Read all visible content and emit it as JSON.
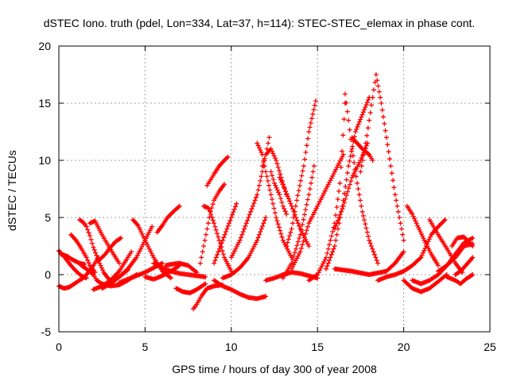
{
  "chart_data": {
    "type": "scatter",
    "title": "dSTEC Iono. truth (pdel, Lon=334, Lat=37, h=114): STEC-STEC_elemax in phase cont.",
    "xlabel": "GPS time / hours of day 300 of year 2008",
    "ylabel": "dSTEC  / TECUs",
    "xlim": [
      0,
      25
    ],
    "ylim": [
      -5,
      20
    ],
    "xticks": [
      0,
      5,
      10,
      15,
      20,
      25
    ],
    "yticks": [
      -5,
      0,
      5,
      10,
      15,
      20
    ],
    "xtick_labels": [
      "0",
      "5",
      "10",
      "15",
      "20",
      "25"
    ],
    "ytick_labels": [
      "-5",
      "0",
      "5",
      "10",
      "15",
      "20"
    ],
    "grid": true,
    "marker": "plus",
    "color": "#ff0000",
    "series": [
      {
        "x": [
          0.0,
          0.3,
          0.6,
          1.0,
          1.5,
          2.0,
          2.3
        ],
        "y": [
          -1.0,
          -1.2,
          -1.1,
          -0.7,
          -0.2,
          0.8,
          1.5
        ]
      },
      {
        "x": [
          0.0,
          0.3,
          0.7,
          1.0,
          1.3,
          1.6
        ],
        "y": [
          2.1,
          1.6,
          0.8,
          0.3,
          -0.1,
          -0.3
        ]
      },
      {
        "x": [
          0.1,
          0.5,
          0.8,
          1.2,
          1.5
        ],
        "y": [
          1.8,
          1.6,
          1.3,
          1.0,
          0.9
        ]
      },
      {
        "x": [
          0.7,
          1.0,
          1.3,
          1.6,
          1.8,
          2.1
        ],
        "y": [
          3.5,
          3.0,
          2.3,
          1.5,
          0.8,
          0.2
        ]
      },
      {
        "x": [
          1.2,
          1.4,
          1.6,
          1.8,
          2.0,
          2.3,
          2.6,
          3.0
        ],
        "y": [
          4.8,
          4.6,
          4.2,
          3.4,
          2.4,
          1.2,
          0.2,
          -0.6
        ]
      },
      {
        "x": [
          1.3,
          1.6,
          2.0,
          2.2,
          2.5,
          3.0,
          3.5,
          4.0,
          4.5
        ],
        "y": [
          0.8,
          0.5,
          0.0,
          -0.5,
          -0.8,
          -1.0,
          -0.9,
          -0.5,
          0.0
        ]
      },
      {
        "x": [
          2.0,
          2.5,
          3.0,
          3.5,
          4.0,
          4.2
        ],
        "y": [
          -1.3,
          -1.0,
          -0.5,
          0.3,
          1.5,
          2.0
        ]
      },
      {
        "x": [
          1.8,
          2.1,
          2.5,
          3.0,
          3.5
        ],
        "y": [
          4.5,
          4.7,
          3.5,
          2.2,
          1.0
        ]
      },
      {
        "x": [
          2.3,
          2.7,
          3.0,
          3.3,
          3.6
        ],
        "y": [
          1.2,
          1.8,
          2.4,
          2.9,
          3.2
        ]
      },
      {
        "x": [
          2.5,
          3.0,
          3.5,
          4.0
        ],
        "y": [
          -1.2,
          -0.8,
          -0.2,
          0.4
        ]
      },
      {
        "x": [
          3.0,
          3.5,
          4.0,
          4.5,
          5.0,
          5.4
        ],
        "y": [
          -0.5,
          -0.2,
          0.5,
          1.5,
          3.0,
          4.2
        ]
      },
      {
        "x": [
          4.3,
          4.6,
          5.0,
          5.5,
          6.0,
          6.5
        ],
        "y": [
          4.8,
          4.3,
          3.0,
          1.5,
          0.3,
          -0.3
        ]
      },
      {
        "x": [
          3.5,
          4.0,
          4.5,
          5.0,
          5.5,
          6.0
        ],
        "y": [
          -0.7,
          -0.4,
          -0.1,
          0.2,
          0.6,
          1.0
        ]
      },
      {
        "x": [
          5.0,
          5.5,
          6.0,
          6.5,
          7.0
        ],
        "y": [
          -0.2,
          -0.4,
          -0.1,
          0.3,
          0.8
        ]
      },
      {
        "x": [
          5.7,
          6.0,
          6.3,
          6.7,
          7.0
        ],
        "y": [
          3.7,
          4.3,
          5.0,
          5.6,
          6.0
        ]
      },
      {
        "x": [
          5.5,
          6.0,
          6.5,
          7.0,
          7.5,
          8.0,
          8.5
        ],
        "y": [
          1.0,
          0.6,
          0.3,
          0.1,
          0.0,
          -0.1,
          -0.2
        ]
      },
      {
        "x": [
          6.2,
          6.5,
          7.0,
          7.5,
          8.0
        ],
        "y": [
          0.8,
          0.9,
          1.0,
          0.8,
          0.2
        ]
      },
      {
        "x": [
          6.8,
          7.2,
          7.6,
          8.0,
          8.5
        ],
        "y": [
          -1.2,
          -1.5,
          -1.6,
          -1.3,
          -0.8
        ]
      },
      {
        "x": [
          7.8,
          8.0,
          8.3,
          8.6,
          9.0,
          9.5
        ],
        "y": [
          -3.0,
          -2.6,
          -1.8,
          -1.2,
          -1.0,
          -0.9
        ]
      },
      {
        "x": [
          8.2,
          8.4,
          8.6,
          8.8,
          9.0,
          9.3,
          9.6
        ],
        "y": [
          1.0,
          2.5,
          4.0,
          5.5,
          6.5,
          7.3,
          7.9
        ]
      },
      {
        "x": [
          8.6,
          8.8,
          9.0,
          9.3,
          9.6,
          9.8
        ],
        "y": [
          7.8,
          8.3,
          8.8,
          9.5,
          10.0,
          10.3
        ]
      },
      {
        "x": [
          8.4,
          8.7,
          9.0,
          9.3,
          9.6,
          10.0
        ],
        "y": [
          6.0,
          5.8,
          4.5,
          3.0,
          1.5,
          0.3
        ]
      },
      {
        "x": [
          9.0,
          9.5,
          10.0,
          10.5,
          11.0,
          11.5,
          12.0
        ],
        "y": [
          -0.5,
          -1.0,
          -1.3,
          -1.7,
          -2.0,
          -2.1,
          -1.9
        ]
      },
      {
        "x": [
          9.0,
          9.5,
          10.0,
          10.3
        ],
        "y": [
          1.0,
          3.0,
          5.0,
          6.2
        ]
      },
      {
        "x": [
          9.5,
          10.0,
          10.5,
          11.0,
          11.5,
          12.0
        ],
        "y": [
          -0.3,
          0.0,
          0.6,
          1.5,
          3.0,
          5.0
        ]
      },
      {
        "x": [
          10.0,
          10.5,
          11.0,
          11.5,
          11.8,
          12.0,
          12.2
        ],
        "y": [
          1.5,
          3.0,
          5.0,
          7.0,
          9.0,
          10.5,
          12.0
        ]
      },
      {
        "x": [
          11.5,
          11.8,
          12.0,
          12.3,
          12.6,
          13.0,
          13.5
        ],
        "y": [
          11.5,
          10.5,
          9.0,
          7.0,
          5.0,
          3.0,
          1.5
        ]
      },
      {
        "x": [
          11.8,
          12.0,
          12.3,
          12.6,
          12.9,
          13.2
        ],
        "y": [
          9.5,
          10.5,
          11.0,
          10.0,
          8.5,
          7.0
        ]
      },
      {
        "x": [
          12.3,
          12.5,
          12.8,
          13.0,
          13.2
        ],
        "y": [
          9.0,
          8.0,
          7.0,
          6.0,
          5.3
        ]
      },
      {
        "x": [
          12.8,
          13.1,
          13.5,
          14.0,
          14.5
        ],
        "y": [
          8.5,
          7.5,
          6.0,
          4.0,
          2.5
        ]
      },
      {
        "x": [
          13.0,
          13.5,
          14.0,
          14.5,
          14.8
        ],
        "y": [
          -0.3,
          1.0,
          3.5,
          7.0,
          9.5
        ]
      },
      {
        "x": [
          13.2,
          13.5,
          13.8,
          14.2,
          14.5,
          14.9
        ],
        "y": [
          2.5,
          4.0,
          6.5,
          9.5,
          12.5,
          15.2
        ]
      },
      {
        "x": [
          13.5,
          14.0,
          14.5,
          15.0,
          15.5,
          16.0,
          16.5
        ],
        "y": [
          0.5,
          2.0,
          4.5,
          6.0,
          7.5,
          9.0,
          10.5
        ]
      },
      {
        "x": [
          12.0,
          12.5,
          13.0,
          13.5,
          14.0,
          14.5,
          15.0
        ],
        "y": [
          -0.5,
          -0.3,
          0.0,
          0.2,
          0.1,
          -0.1,
          -0.3
        ]
      },
      {
        "x": [
          14.5,
          15.0,
          15.5,
          16.0,
          16.3,
          16.6
        ],
        "y": [
          -0.5,
          0.0,
          1.5,
          4.5,
          8.0,
          15.0
        ]
      },
      {
        "x": [
          15.5,
          16.0,
          16.5,
          16.8,
          17.2,
          17.6,
          18.0
        ],
        "y": [
          0.5,
          2.5,
          6.5,
          9.5,
          12.5,
          14.0,
          15.5
        ]
      },
      {
        "x": [
          16.6,
          16.8,
          17.0,
          17.3,
          17.6,
          18.0,
          18.5
        ],
        "y": [
          15.8,
          13.5,
          11.0,
          8.0,
          5.5,
          3.0,
          1.0
        ]
      },
      {
        "x": [
          16.0,
          16.5,
          17.0,
          17.5,
          17.9
        ],
        "y": [
          4.0,
          6.0,
          8.5,
          10.0,
          11.5
        ]
      },
      {
        "x": [
          17.0,
          17.3,
          17.6,
          18.0,
          18.2
        ],
        "y": [
          12.0,
          11.5,
          11.0,
          10.5,
          10.0
        ]
      },
      {
        "x": [
          17.5,
          17.8,
          18.0,
          18.2,
          18.4,
          18.7,
          19.0,
          19.5,
          20.0
        ],
        "y": [
          9.0,
          11.5,
          13.5,
          15.5,
          17.5,
          15.0,
          12.0,
          7.0,
          3.0
        ]
      },
      {
        "x": [
          16.0,
          17.0,
          18.0,
          19.0,
          19.5,
          20.0
        ],
        "y": [
          0.5,
          0.3,
          0.0,
          0.3,
          1.0,
          2.0
        ]
      },
      {
        "x": [
          18.5,
          19.0,
          19.5,
          20.0,
          20.5,
          21.0
        ],
        "y": [
          -0.5,
          -0.2,
          0.0,
          0.3,
          0.8,
          1.5
        ]
      },
      {
        "x": [
          20.2,
          20.5,
          20.8,
          21.2,
          21.6,
          22.0
        ],
        "y": [
          6.0,
          5.3,
          4.3,
          3.0,
          1.8,
          0.8
        ]
      },
      {
        "x": [
          20.0,
          20.5,
          21.0,
          21.5,
          22.0,
          22.5
        ],
        "y": [
          -0.5,
          -1.2,
          -1.5,
          -1.2,
          -0.6,
          0.0
        ]
      },
      {
        "x": [
          21.0,
          21.3,
          21.6,
          22.0,
          22.4
        ],
        "y": [
          1.5,
          2.5,
          3.5,
          4.2,
          4.8
        ]
      },
      {
        "x": [
          20.5,
          21.0,
          21.5,
          22.0,
          22.5,
          23.0,
          23.5,
          24.0
        ],
        "y": [
          -0.5,
          -0.8,
          -0.5,
          0.0,
          0.8,
          1.8,
          2.8,
          3.2
        ]
      },
      {
        "x": [
          21.5,
          22.0,
          22.5,
          23.0,
          23.4
        ],
        "y": [
          4.8,
          3.5,
          2.3,
          1.0,
          0.2
        ]
      },
      {
        "x": [
          22.0,
          22.5,
          23.0,
          23.5,
          24.0
        ],
        "y": [
          0.3,
          0.8,
          1.5,
          2.5,
          2.7
        ]
      },
      {
        "x": [
          22.5,
          23.0,
          23.3,
          23.6,
          24.0
        ],
        "y": [
          -0.2,
          -0.5,
          -0.8,
          -0.4,
          0.0
        ]
      },
      {
        "x": [
          23.0,
          23.3,
          23.6,
          24.0
        ],
        "y": [
          0.0,
          0.3,
          0.8,
          1.5
        ]
      },
      {
        "x": [
          22.8,
          23.1,
          23.5,
          23.8,
          24.0
        ],
        "y": [
          2.5,
          3.2,
          3.3,
          2.8,
          2.5
        ]
      }
    ]
  }
}
